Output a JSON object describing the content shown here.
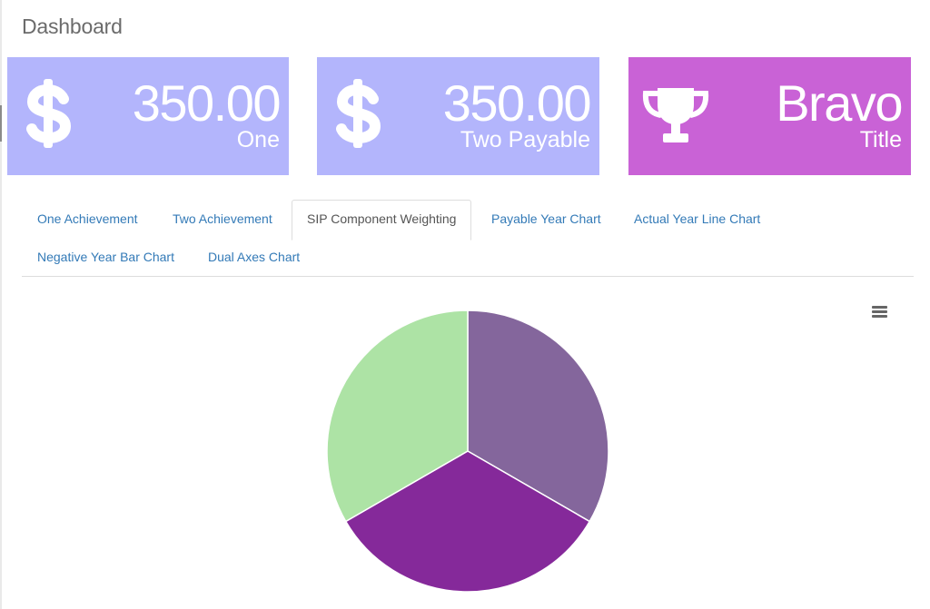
{
  "header": {
    "title": "Dashboard"
  },
  "cards": [
    {
      "value": "350.00",
      "label": "One",
      "color": "#b3b5fc",
      "icon": "dollar-icon"
    },
    {
      "value": "350.00",
      "label": "Two Payable",
      "color": "#b3b5fc",
      "icon": "dollar-icon"
    },
    {
      "value": "Bravo",
      "label": "Title",
      "color": "#c962d6",
      "icon": "trophy-icon"
    }
  ],
  "tabs": [
    {
      "label": "One Achievement",
      "active": false
    },
    {
      "label": "Two Achievement",
      "active": false
    },
    {
      "label": "SIP Component Weighting",
      "active": true
    },
    {
      "label": "Payable Year Chart",
      "active": false
    },
    {
      "label": "Actual Year Line Chart",
      "active": false
    },
    {
      "label": "Negative Year Bar Chart",
      "active": false
    },
    {
      "label": "Dual Axes Chart",
      "active": false
    }
  ],
  "chart_menu_icon": "hamburger-menu-icon",
  "colors": {
    "link": "#337ab7",
    "card_blue": "#b3b5fc",
    "card_purple": "#c962d6"
  },
  "chart_data": {
    "type": "pie",
    "title": "",
    "slices": [
      {
        "value": 33.34,
        "color": "#84669c"
      },
      {
        "value": 33.33,
        "color": "#85299a"
      },
      {
        "value": 33.33,
        "color": "#ade3a5"
      }
    ]
  }
}
